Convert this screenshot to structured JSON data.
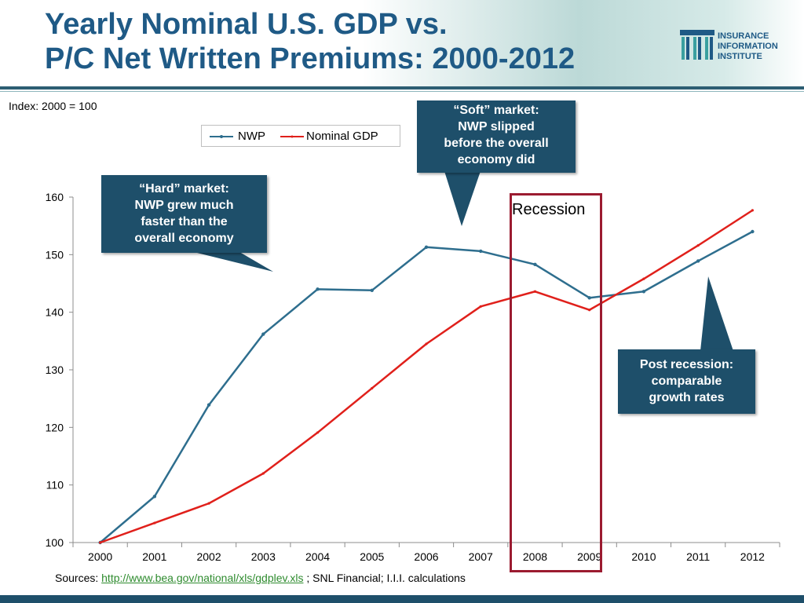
{
  "header": {
    "title_line1": "Yearly Nominal U.S. GDP vs.",
    "title_line2": "P/C Net Written Premiums: 2000-2012",
    "logo_line1": "INSURANCE",
    "logo_line2": "INFORMATION",
    "logo_line3": "INSTITUTE"
  },
  "index_note": "Index: 2000 = 100",
  "legend": {
    "nwp": "NWP",
    "gdp": "Nominal GDP"
  },
  "callouts": {
    "soft": [
      "“Soft” market:",
      "NWP slipped",
      "before the overall",
      "economy did"
    ],
    "hard": [
      "“Hard” market:",
      "NWP grew much",
      "faster than the",
      "overall economy"
    ],
    "post": [
      "Post recession:",
      "comparable",
      "growth rates"
    ]
  },
  "recession_label": "Recession",
  "sources": {
    "prefix": "Sources: ",
    "link": "http://www.bea.gov/national/xls/gdplev.xls",
    "suffix": " ; SNL Financial; I.I.I. calculations"
  },
  "colors": {
    "nwp": "#2e6e8e",
    "gdp": "#e0201b",
    "callout": "#1e4f6a",
    "recession": "#9b1b30",
    "title": "#1f5a86"
  },
  "chart_data": {
    "type": "line",
    "categories": [
      "2000",
      "2001",
      "2002",
      "2003",
      "2004",
      "2005",
      "2006",
      "2007",
      "2008",
      "2009",
      "2010",
      "2011",
      "2012"
    ],
    "series": [
      {
        "name": "NWP",
        "values": [
          100.0,
          108.0,
          123.9,
          136.2,
          144.0,
          143.8,
          151.3,
          150.6,
          148.3,
          142.5,
          143.6,
          148.9,
          154.0
        ]
      },
      {
        "name": "Nominal GDP",
        "values": [
          100.0,
          103.4,
          106.8,
          112.0,
          119.1,
          126.8,
          134.5,
          141.0,
          143.6,
          140.4,
          145.8,
          151.6,
          157.7
        ]
      }
    ],
    "yticks": [
      100,
      110,
      120,
      130,
      140,
      150,
      160
    ],
    "ylim": [
      100,
      160
    ],
    "title": "",
    "xlabel": "",
    "ylabel": "",
    "legend_position": "top"
  }
}
